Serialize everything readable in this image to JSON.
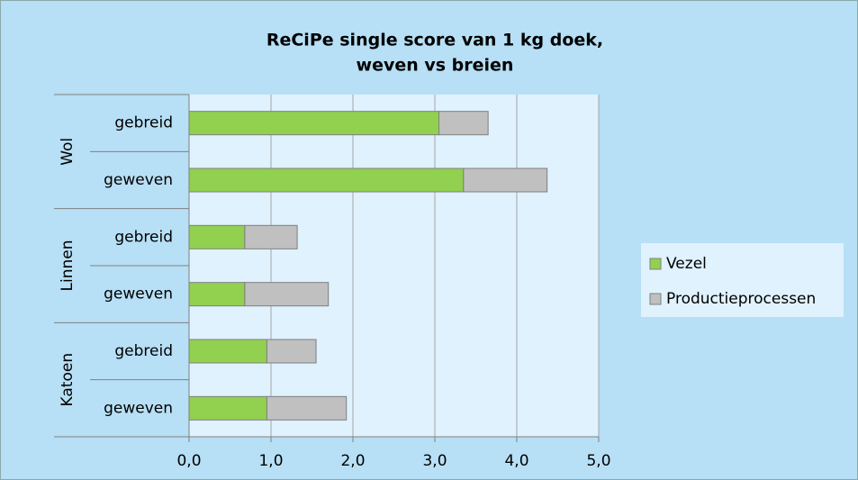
{
  "chart_data": {
    "type": "stacked_barh",
    "title": [
      "ReCiPe single score van 1 kg doek,",
      "weven vs breien"
    ],
    "groups": [
      {
        "name": "Wol",
        "categories": [
          "gebreid",
          "geweven"
        ]
      },
      {
        "name": "Linnen",
        "categories": [
          "gebreid",
          "geweven"
        ]
      },
      {
        "name": "Katoen",
        "categories": [
          "gebreid",
          "geweven"
        ]
      }
    ],
    "series": [
      {
        "name": "Vezel",
        "color": "#92d050",
        "values": [
          3.05,
          3.35,
          0.68,
          0.68,
          0.95,
          0.95
        ]
      },
      {
        "name": "Productieprocessen",
        "color": "#c0c0c0",
        "values": [
          0.6,
          1.02,
          0.64,
          1.02,
          0.6,
          0.97
        ]
      }
    ],
    "xlim": [
      0,
      5
    ],
    "xticks": [
      {
        "value": 0,
        "label": "0,0"
      },
      {
        "value": 1,
        "label": "1,0"
      },
      {
        "value": 2,
        "label": "2,0"
      },
      {
        "value": 3,
        "label": "3,0"
      },
      {
        "value": 4,
        "label": "4,0"
      },
      {
        "value": 5,
        "label": "5,0"
      }
    ],
    "grid": true,
    "legend": "right"
  }
}
